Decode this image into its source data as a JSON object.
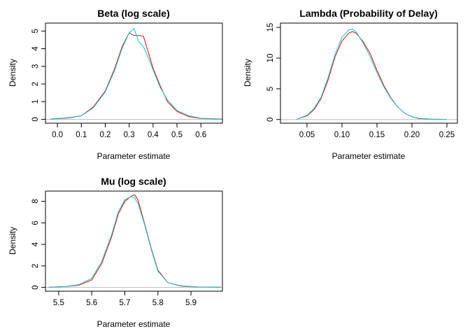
{
  "chart_data": [
    {
      "type": "line",
      "title": "Beta (log scale)",
      "xlabel": "Parameter estimate",
      "ylabel": "Density",
      "xlim": [
        -0.05,
        0.69
      ],
      "ylim": [
        -0.22,
        5.45
      ],
      "xticks": [
        0.0,
        0.1,
        0.2,
        0.3,
        0.4,
        0.5,
        0.6
      ],
      "xtick_labels": [
        "0.0",
        "0.1",
        "0.2",
        "0.3",
        "0.4",
        "0.5",
        "0.6"
      ],
      "yticks": [
        0,
        1,
        2,
        3,
        4,
        5
      ],
      "ytick_labels": [
        "0",
        "1",
        "2",
        "3",
        "4",
        "5"
      ],
      "grid": false,
      "baseline": 0,
      "series": [
        {
          "color": "#ff0000",
          "x": [
            -0.03,
            0.0,
            0.05,
            0.1,
            0.15,
            0.2,
            0.24,
            0.27,
            0.3,
            0.32,
            0.34,
            0.36,
            0.38,
            0.4,
            0.43,
            0.46,
            0.5,
            0.55,
            0.6,
            0.69
          ],
          "y": [
            0.02,
            0.04,
            0.08,
            0.2,
            0.7,
            1.6,
            2.9,
            4.1,
            4.9,
            4.75,
            4.75,
            4.7,
            3.8,
            2.9,
            1.9,
            1.0,
            0.45,
            0.15,
            0.05,
            0.01
          ]
        },
        {
          "color": "#00cdcd",
          "x": [
            -0.03,
            0.0,
            0.05,
            0.1,
            0.15,
            0.2,
            0.24,
            0.27,
            0.3,
            0.32,
            0.34,
            0.36,
            0.38,
            0.4,
            0.43,
            0.46,
            0.5,
            0.55,
            0.6,
            0.69
          ],
          "y": [
            0.02,
            0.05,
            0.1,
            0.2,
            0.65,
            1.55,
            2.8,
            4.0,
            4.9,
            5.15,
            4.4,
            4.1,
            3.5,
            2.8,
            1.8,
            1.1,
            0.5,
            0.2,
            0.06,
            0.02
          ]
        }
      ]
    },
    {
      "type": "line",
      "title": "Lambda (Probability of Delay)",
      "xlabel": "Parameter estimate",
      "ylabel": "Density",
      "xlim": [
        0.012,
        0.265
      ],
      "ylim": [
        -0.6,
        15.7
      ],
      "xticks": [
        0.05,
        0.1,
        0.15,
        0.2,
        0.25
      ],
      "xtick_labels": [
        "0.05",
        "0.10",
        "0.15",
        "0.20",
        "0.25"
      ],
      "yticks": [
        0,
        5,
        10,
        15
      ],
      "ytick_labels": [
        "0",
        "5",
        "10",
        "15"
      ],
      "grid": false,
      "baseline": 0,
      "series": [
        {
          "color": "#ff0000",
          "x": [
            0.035,
            0.05,
            0.06,
            0.07,
            0.08,
            0.09,
            0.1,
            0.11,
            0.115,
            0.12,
            0.13,
            0.14,
            0.15,
            0.16,
            0.17,
            0.18,
            0.19,
            0.2,
            0.21,
            0.23,
            0.25
          ],
          "y": [
            0.05,
            0.6,
            1.6,
            3.4,
            6.4,
            10.2,
            12.8,
            14.1,
            14.3,
            14.1,
            12.7,
            10.8,
            8.0,
            5.5,
            3.5,
            2.0,
            1.0,
            0.45,
            0.15,
            0.05,
            0.02
          ]
        },
        {
          "color": "#00cdcd",
          "x": [
            0.035,
            0.05,
            0.06,
            0.07,
            0.08,
            0.09,
            0.1,
            0.11,
            0.115,
            0.12,
            0.13,
            0.14,
            0.15,
            0.16,
            0.17,
            0.18,
            0.19,
            0.2,
            0.21,
            0.23,
            0.25
          ],
          "y": [
            0.05,
            0.7,
            1.8,
            3.6,
            6.8,
            10.6,
            13.4,
            14.6,
            14.7,
            14.3,
            12.5,
            10.3,
            7.6,
            5.3,
            3.4,
            2.0,
            1.0,
            0.45,
            0.2,
            0.05,
            0.02
          ]
        }
      ]
    },
    {
      "type": "line",
      "title": "Mu (log scale)",
      "xlabel": "Parameter estimate",
      "ylabel": "Density",
      "xlim": [
        5.46,
        5.995
      ],
      "ylim": [
        -0.35,
        8.95
      ],
      "xticks": [
        5.5,
        5.6,
        5.7,
        5.8,
        5.9
      ],
      "xtick_labels": [
        "5.5",
        "5.6",
        "5.7",
        "5.8",
        "5.9"
      ],
      "yticks": [
        0,
        2,
        4,
        6,
        8
      ],
      "ytick_labels": [
        "0",
        "2",
        "4",
        "6",
        "8"
      ],
      "grid": false,
      "baseline": 0,
      "series": [
        {
          "color": "#ff0000",
          "x": [
            5.47,
            5.52,
            5.56,
            5.6,
            5.63,
            5.66,
            5.68,
            5.7,
            5.72,
            5.73,
            5.74,
            5.76,
            5.78,
            5.8,
            5.83,
            5.87,
            5.92,
            5.99
          ],
          "y": [
            0.02,
            0.08,
            0.2,
            0.7,
            2.2,
            4.7,
            6.8,
            8.0,
            8.5,
            8.6,
            8.1,
            5.9,
            3.6,
            1.6,
            0.45,
            0.12,
            0.04,
            0.02
          ]
        },
        {
          "color": "#00cdcd",
          "x": [
            5.47,
            5.52,
            5.56,
            5.6,
            5.63,
            5.66,
            5.68,
            5.7,
            5.72,
            5.73,
            5.74,
            5.76,
            5.78,
            5.8,
            5.83,
            5.87,
            5.92,
            5.99
          ],
          "y": [
            0.02,
            0.08,
            0.25,
            0.85,
            2.4,
            4.9,
            7.0,
            8.15,
            8.45,
            8.3,
            7.8,
            5.8,
            3.5,
            1.5,
            0.45,
            0.15,
            0.05,
            0.02
          ]
        }
      ]
    }
  ]
}
